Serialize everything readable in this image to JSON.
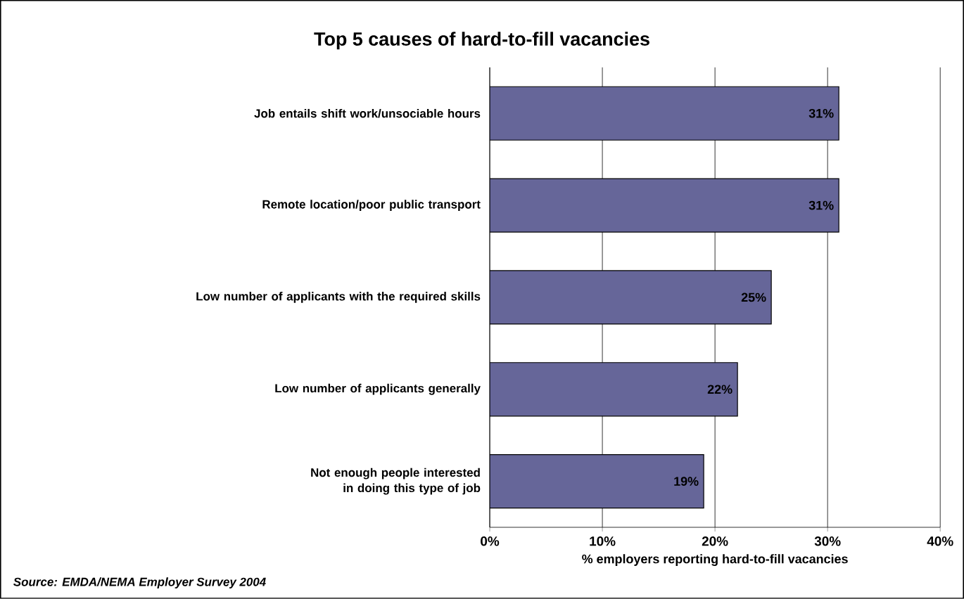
{
  "chart_data": {
    "type": "bar",
    "orientation": "horizontal",
    "title": "Top 5 causes of hard-to-fill vacancies",
    "xlabel": "% employers reporting hard-to-fill vacancies",
    "categories": [
      "Job entails shift work/unsociable hours",
      "Remote location/poor public transport",
      "Low number of applicants with the required skills",
      "Low number of applicants generally",
      "Not enough people interested in doing this type of job"
    ],
    "values": [
      31,
      31,
      25,
      22,
      19
    ],
    "value_labels": [
      "31%",
      "31%",
      "25%",
      "22%",
      "19%"
    ],
    "color": "#666699",
    "xlim": [
      0,
      40
    ],
    "xticks": [
      {
        "value": 0,
        "label": "0%"
      },
      {
        "value": 10,
        "label": "10%"
      },
      {
        "value": 20,
        "label": "20%"
      },
      {
        "value": 30,
        "label": "30%"
      },
      {
        "value": 40,
        "label": "40%"
      }
    ],
    "grid": "x",
    "annotations": [
      "Source: EMDA/NEMA Employer Survey 2004"
    ]
  }
}
